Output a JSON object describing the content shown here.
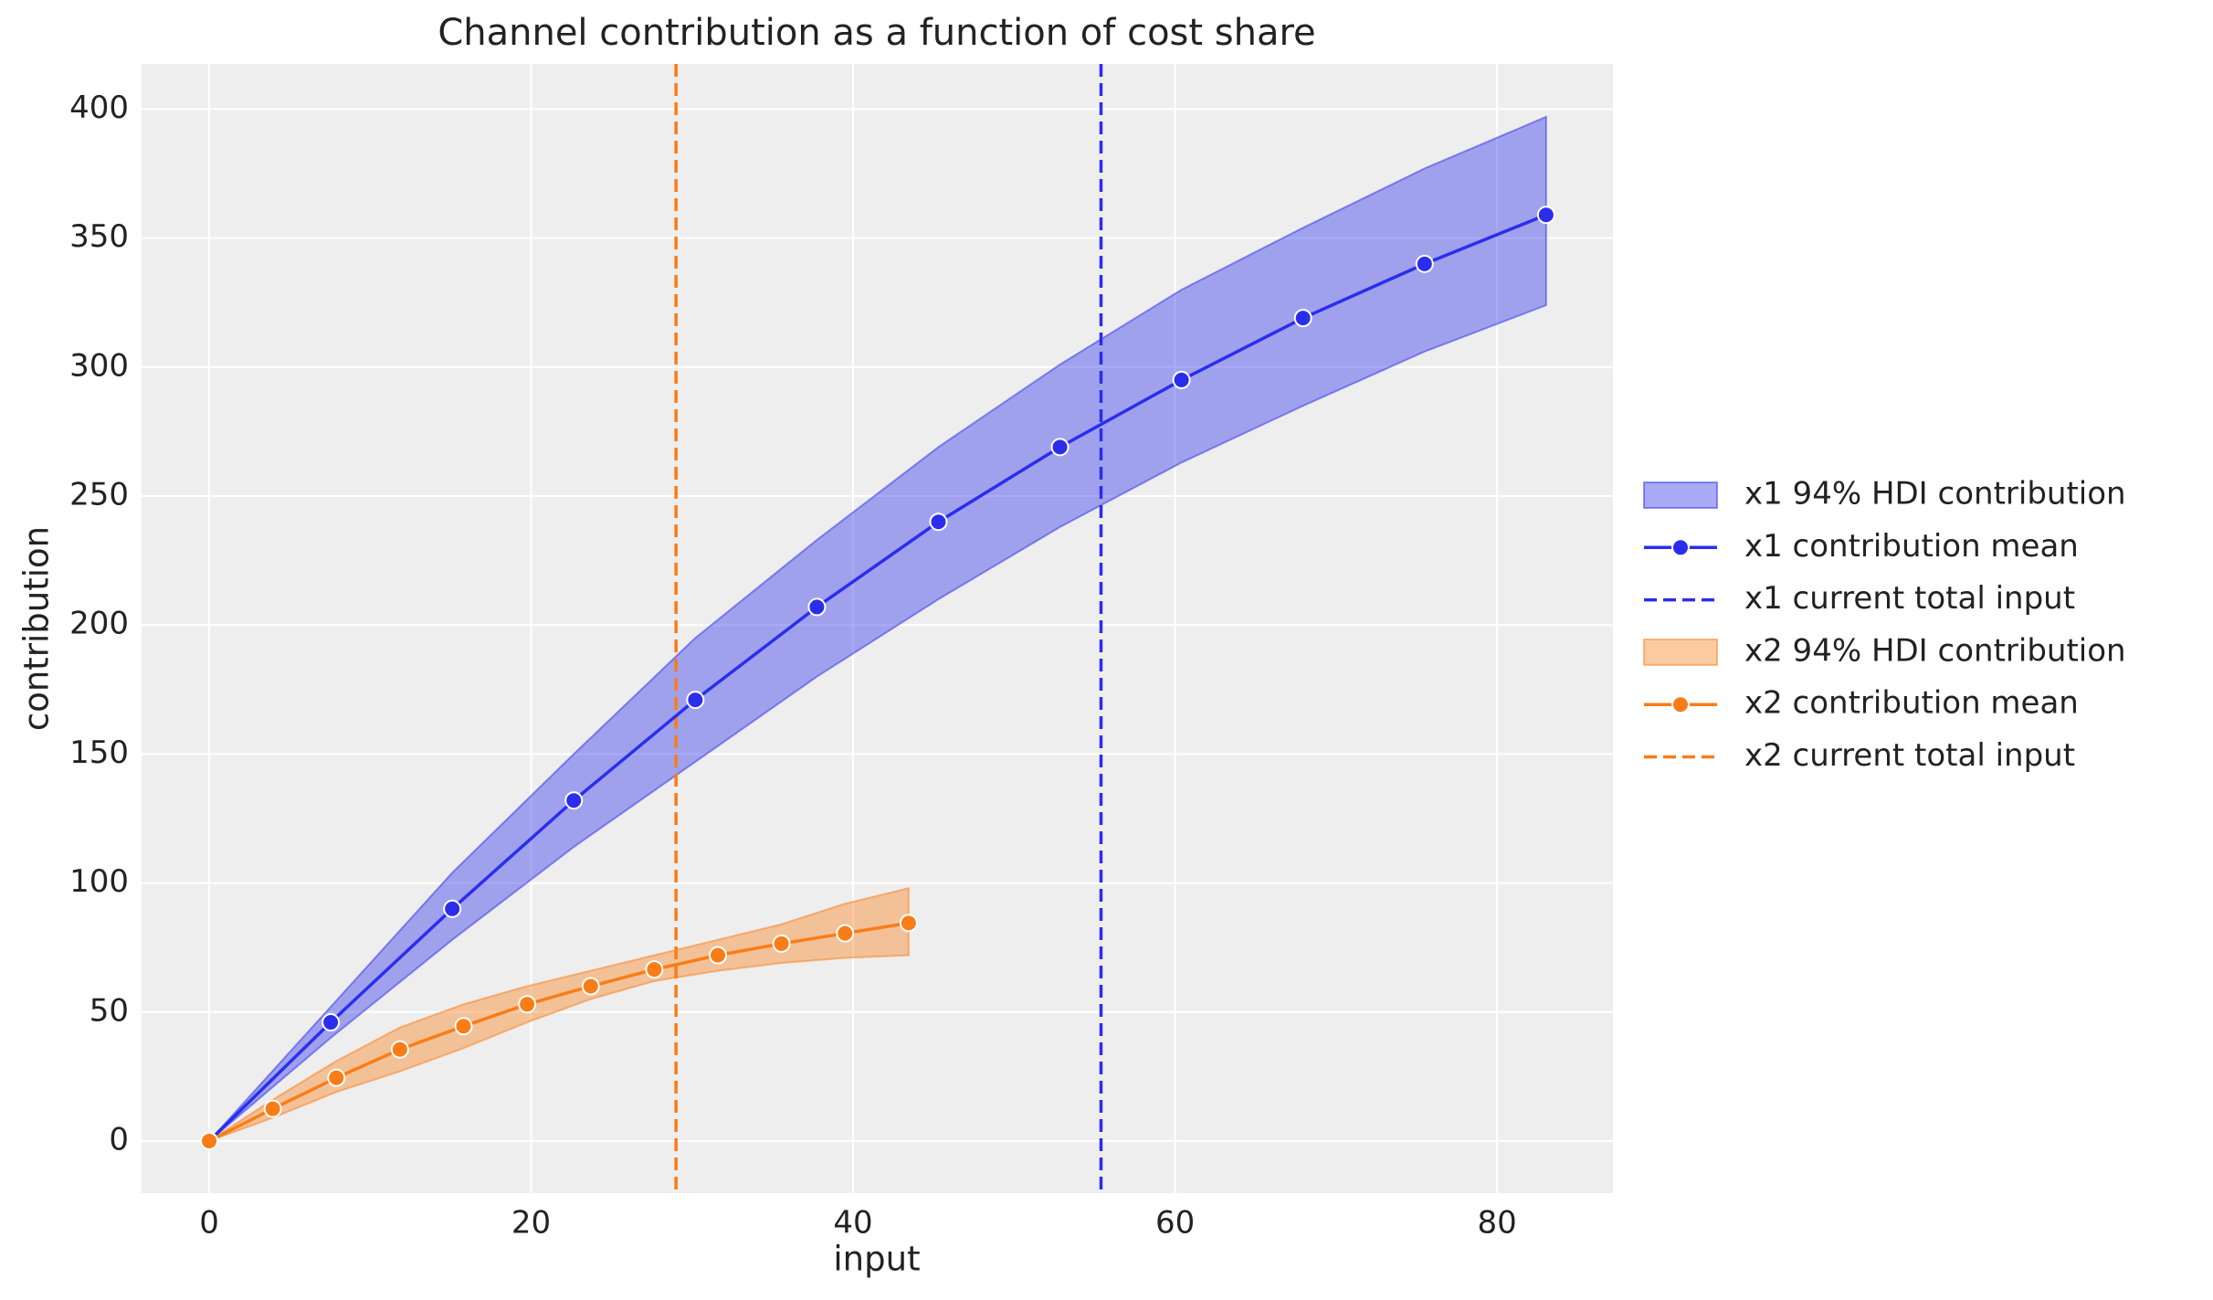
{
  "chart_data": {
    "type": "line",
    "title": "Channel contribution as a function of cost share",
    "x_label": "input",
    "y_label": "contribution",
    "xlim": [
      -4.2,
      87.2
    ],
    "ylim": [
      -20.2,
      417.5
    ],
    "xticks": [
      0,
      20,
      40,
      60,
      80
    ],
    "yticks": [
      0,
      50,
      100,
      150,
      200,
      250,
      300,
      350,
      400
    ],
    "grid": true,
    "legend": "right",
    "series": [
      {
        "name": "x1 94% HDI contribution",
        "kind": "band",
        "color": "#2a2eec",
        "x": [
          0,
          7.55,
          15.1,
          22.65,
          30.2,
          37.75,
          45.3,
          52.85,
          60.4,
          67.95,
          75.5,
          83.05
        ],
        "lower": [
          0,
          40,
          78,
          114,
          147,
          180,
          210,
          238,
          263,
          285,
          306,
          324
        ],
        "upper": [
          0,
          52,
          104,
          150,
          195,
          233,
          269,
          301,
          330,
          354,
          377,
          397
        ]
      },
      {
        "name": "x1 contribution mean",
        "kind": "line",
        "color": "#2a2eec",
        "x": [
          0,
          7.55,
          15.1,
          22.65,
          30.2,
          37.75,
          45.3,
          52.85,
          60.4,
          67.95,
          75.5,
          83.05
        ],
        "values": [
          0,
          46,
          90,
          132,
          171,
          207,
          240,
          269,
          295,
          319,
          340,
          359
        ]
      },
      {
        "name": "x1 current total input",
        "kind": "vline",
        "color": "#2a2eec",
        "x_value": 55.4
      },
      {
        "name": "x2 94% HDI contribution",
        "kind": "band",
        "color": "#fa7c17",
        "x": [
          0,
          3.95,
          7.9,
          11.85,
          15.8,
          19.75,
          23.7,
          27.65,
          31.6,
          35.55,
          39.5,
          43.45
        ],
        "lower": [
          0,
          9,
          19,
          27,
          36,
          46,
          55,
          62,
          66,
          69,
          71,
          72
        ],
        "upper": [
          0,
          16,
          31,
          44,
          53,
          60,
          66,
          72,
          78,
          84,
          92,
          98
        ]
      },
      {
        "name": "x2 contribution mean",
        "kind": "line",
        "color": "#fa7c17",
        "x": [
          0,
          3.95,
          7.9,
          11.85,
          15.8,
          19.75,
          23.7,
          27.65,
          31.6,
          35.55,
          39.5,
          43.45
        ],
        "values": [
          0,
          12.5,
          24.5,
          35.5,
          44.5,
          53,
          60,
          66.5,
          72,
          76.5,
          80.5,
          84.5
        ]
      },
      {
        "name": "x2 current total input",
        "kind": "vline",
        "color": "#fa7c17",
        "x_value": 29
      }
    ]
  }
}
